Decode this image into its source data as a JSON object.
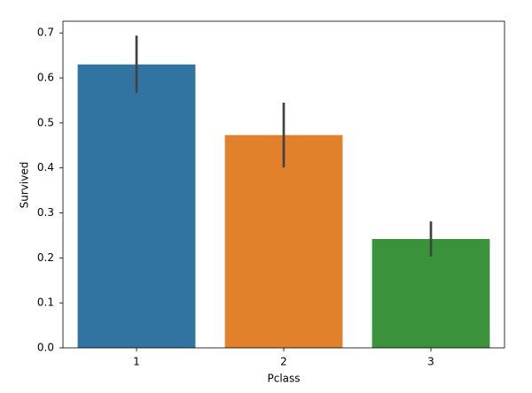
{
  "chart_data": {
    "type": "bar",
    "categories": [
      "1",
      "2",
      "3"
    ],
    "values": [
      0.63,
      0.473,
      0.242
    ],
    "ci_low": [
      0.567,
      0.401,
      0.203
    ],
    "ci_high": [
      0.694,
      0.545,
      0.281
    ],
    "colors": [
      "#3274a1",
      "#e1812c",
      "#3a923a"
    ],
    "error_color": "#424242",
    "x_label": "Pclass",
    "y_label": "Survived",
    "ylim": [
      0,
      0.726
    ],
    "yticks": [
      {
        "value": 0,
        "label": "0.0"
      },
      0.1,
      0.2,
      0.3,
      0.4,
      0.5,
      0.6,
      0.7
    ],
    "grid": false
  }
}
